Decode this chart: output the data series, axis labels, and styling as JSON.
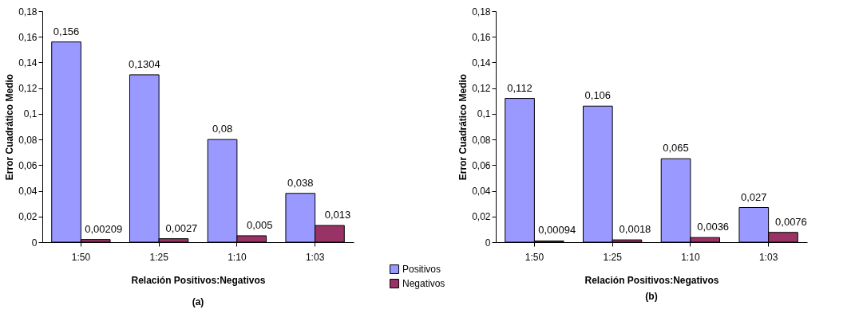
{
  "chart_data": [
    {
      "type": "bar",
      "xlabel": "Relación Positivos:Negativos",
      "ylabel": "Error Cuadrático Medio",
      "annotations": [
        "(a)"
      ],
      "categories": [
        "1:50",
        "1:25",
        "1:10",
        "1:03"
      ],
      "legend": "bottom right",
      "series": [
        {
          "name": "Positivos",
          "color": "#9999ff",
          "values": [
            0.156,
            0.1304,
            0.08,
            0.038
          ],
          "value_labels": [
            "0,156",
            "0,1304",
            "0,08",
            "0,038"
          ]
        },
        {
          "name": "Negativos",
          "color": "#993366",
          "values": [
            0.00209,
            0.0027,
            0.005,
            0.013
          ],
          "value_labels": [
            "0,00209",
            "0,0027",
            "0,005",
            "0,013"
          ]
        }
      ],
      "ylim": [
        0,
        0.18
      ],
      "yticks": [
        0,
        {
          "value": 0.02,
          "label": "0,02"
        },
        {
          "value": 0.04,
          "label": "0,04"
        },
        {
          "value": 0.06,
          "label": "0,06"
        },
        {
          "value": 0.08,
          "label": "0,08"
        },
        {
          "value": 0.1,
          "label": "0,1"
        },
        {
          "value": 0.12,
          "label": "0,12"
        },
        {
          "value": 0.14,
          "label": "0,14"
        },
        {
          "value": 0.16,
          "label": "0,16"
        },
        {
          "value": 0.18,
          "label": "0,18"
        }
      ]
    },
    {
      "type": "bar",
      "xlabel": "Relación Positivos:Negativos",
      "ylabel": "Error Cuadrático Medio",
      "annotations": [
        "(b)"
      ],
      "categories": [
        "1:50",
        "1:25",
        "1:10",
        "1:03"
      ],
      "series": [
        {
          "color": "#9999ff",
          "values": [
            0.112,
            0.106,
            0.065,
            0.027
          ],
          "value_labels": [
            "0,112",
            "0,106",
            "0,065",
            "0,027"
          ]
        },
        {
          "color": "#993366",
          "values": [
            0.00094,
            0.0018,
            0.0036,
            0.0076
          ],
          "value_labels": [
            "0,00094",
            "0,0018",
            "0,0036",
            "0,0076"
          ]
        }
      ],
      "ylim": [
        0,
        0.18
      ],
      "yticks": [
        0,
        {
          "value": 0.02,
          "label": "0,02"
        },
        {
          "value": 0.04,
          "label": "0,04"
        },
        {
          "value": 0.06,
          "label": "0,06"
        },
        {
          "value": 0.08,
          "label": "0,08"
        },
        {
          "value": 0.1,
          "label": "0,1"
        },
        {
          "value": 0.12,
          "label": "0,12"
        },
        {
          "value": 0.14,
          "label": "0,14"
        },
        {
          "value": 0.16,
          "label": "0,16"
        },
        {
          "value": 0.18,
          "label": "0,18"
        }
      ]
    }
  ]
}
